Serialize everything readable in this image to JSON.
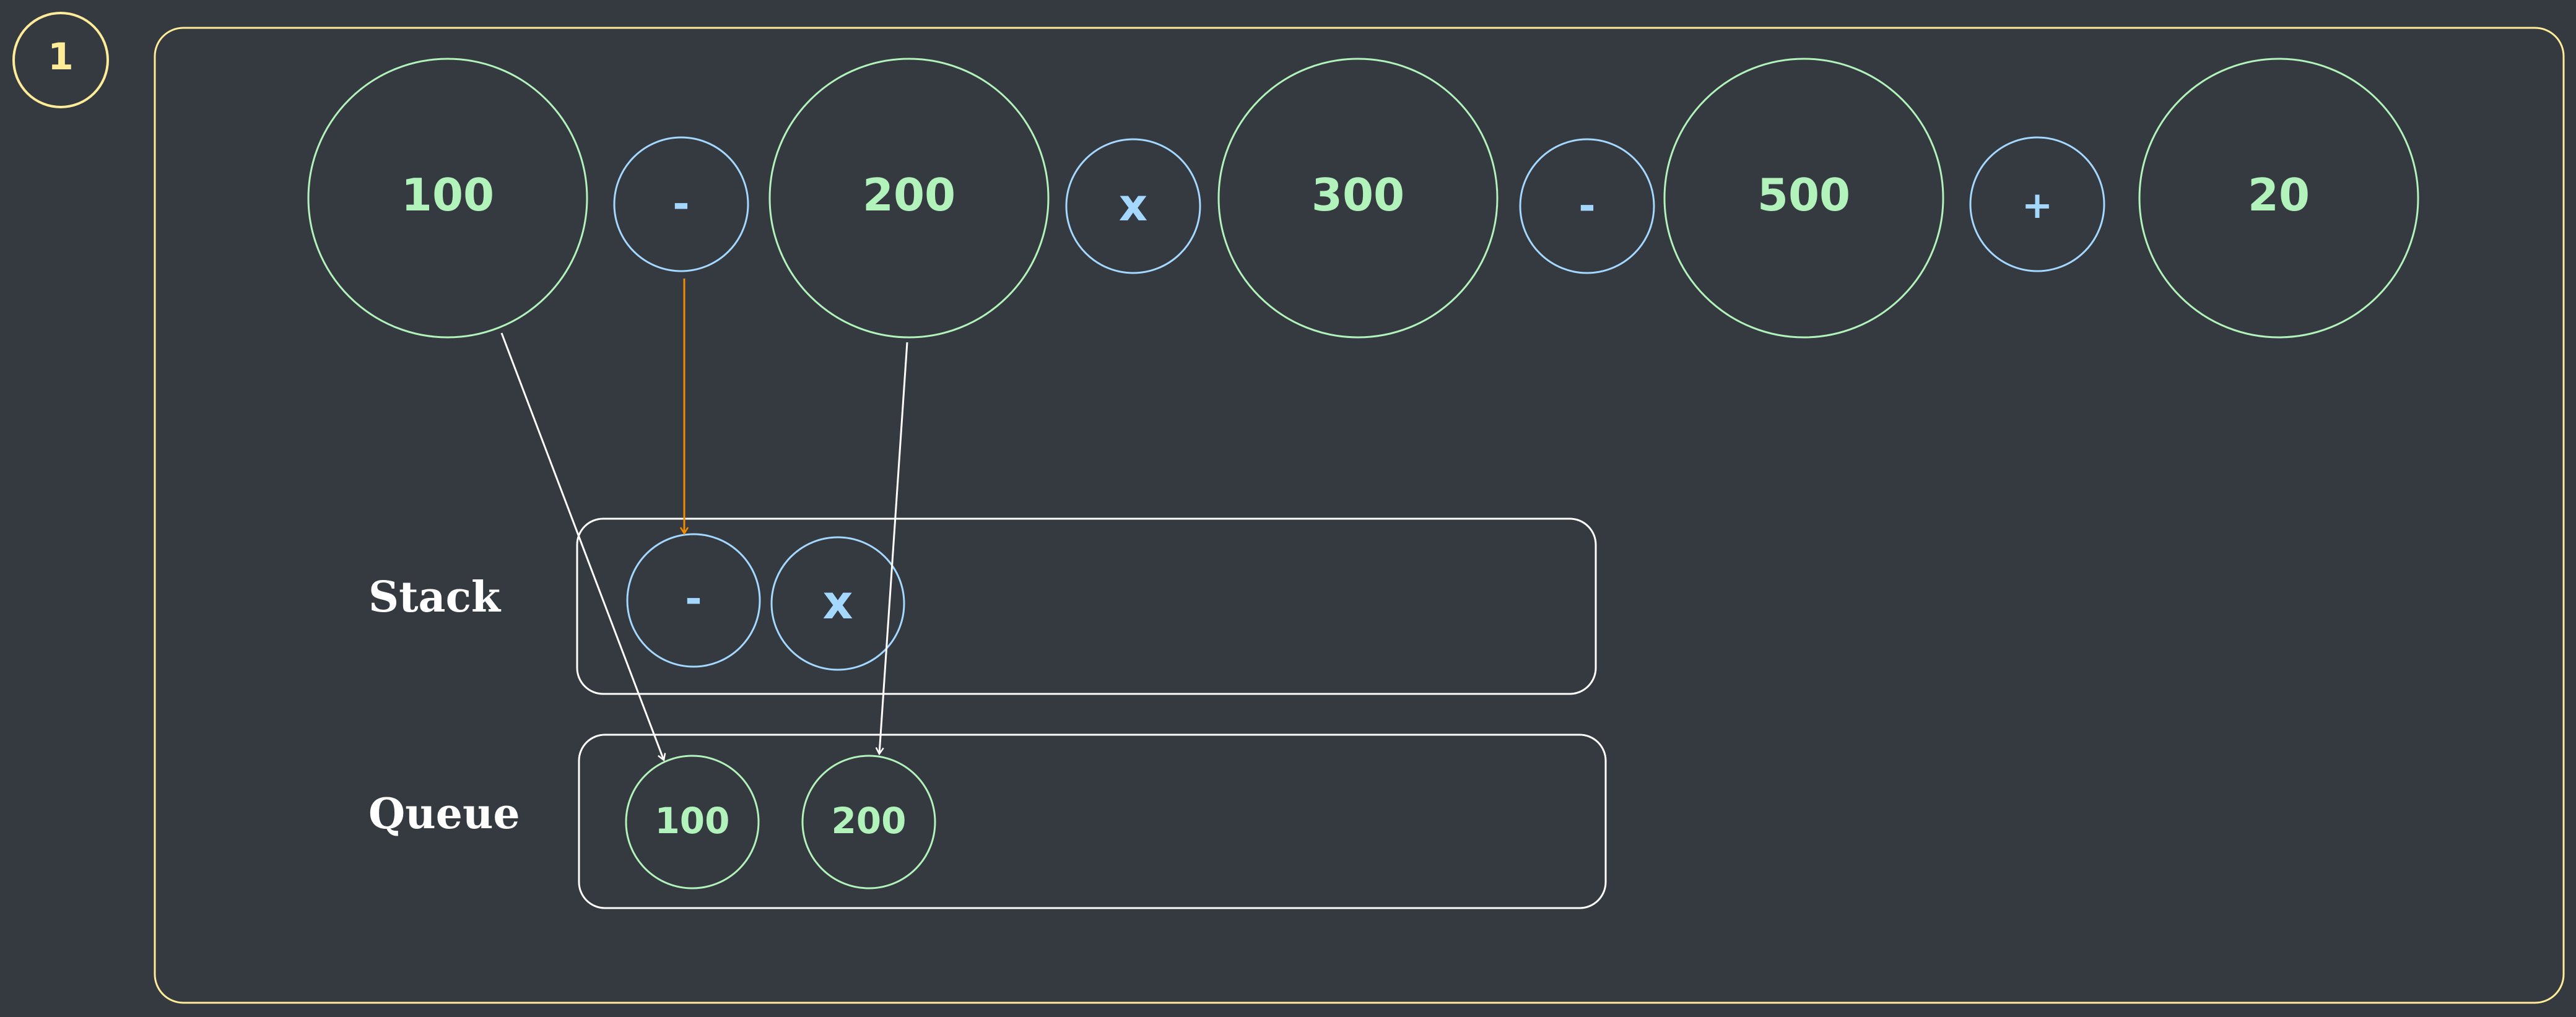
{
  "step_badge": "1",
  "colors": {
    "background": "#343a40",
    "frame": "#ffec99",
    "operand": "#b2f2bb",
    "operator": "#a5d8ff",
    "container": "#ffffff",
    "highlight_arrow": "#f08c00"
  },
  "expression": {
    "tokens": [
      {
        "text": "100",
        "kind": "operand"
      },
      {
        "text": "-",
        "kind": "operator"
      },
      {
        "text": "200",
        "kind": "operand"
      },
      {
        "text": "x",
        "kind": "operator"
      },
      {
        "text": "300",
        "kind": "operand"
      },
      {
        "text": "-",
        "kind": "operator"
      },
      {
        "text": "500",
        "kind": "operand"
      },
      {
        "text": "+",
        "kind": "operator"
      },
      {
        "text": "20",
        "kind": "operand"
      }
    ]
  },
  "stack": {
    "label": "Stack",
    "items": [
      "-",
      "x"
    ]
  },
  "queue": {
    "label": "Queue",
    "items": [
      "100",
      "200"
    ]
  }
}
